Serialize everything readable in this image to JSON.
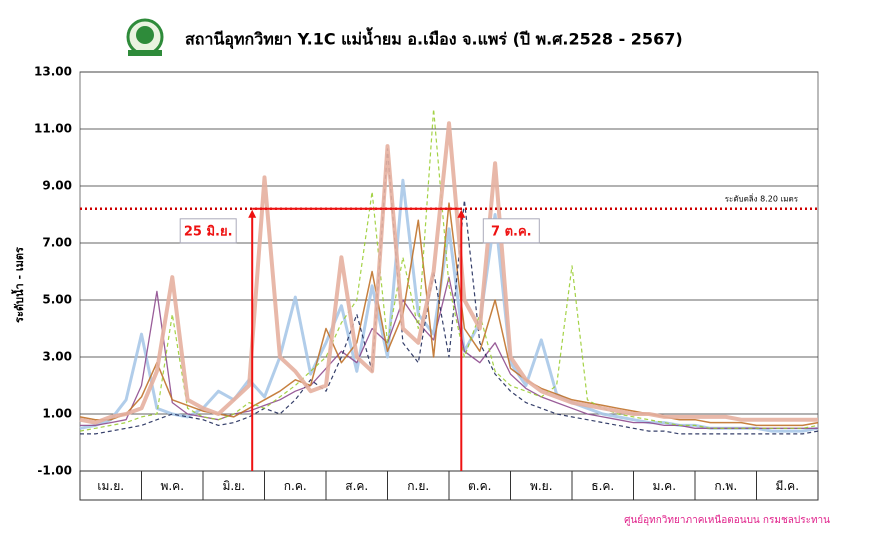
{
  "chart_data": {
    "type": "line",
    "title": "สถานีอุทกวิทยา Y.1C แม่น้ำยม อ.เมือง จ.แพร่ (ปี พ.ศ.2528 - 2567)",
    "y_label": "ระดับน้ำ - เมตร",
    "footer": "ศูนย์อุทกวิทยาภาคเหนือตอนบน กรมชลประทาน",
    "categories": [
      "เม.ย.",
      "พ.ค.",
      "มิ.ย.",
      "ก.ค.",
      "ส.ค.",
      "ก.ย.",
      "ต.ค.",
      "พ.ย.",
      "ธ.ค.",
      "ม.ค.",
      "ก.พ.",
      "มี.ค."
    ],
    "xlim": [
      0,
      12
    ],
    "ylim": [
      -1,
      13
    ],
    "yticks": [
      {
        "value": -1,
        "label": "-1.00"
      },
      {
        "value": 1,
        "label": "1.00"
      },
      {
        "value": 3,
        "label": "3.00"
      },
      {
        "value": 5,
        "label": "5.00"
      },
      {
        "value": 7,
        "label": "7.00"
      },
      {
        "value": 9,
        "label": "9.00"
      },
      {
        "value": 11,
        "label": "11.00"
      },
      {
        "value": 13,
        "label": "13.00"
      }
    ],
    "grid": true,
    "ref_line": {
      "value": 8.2,
      "label": "ระดับตลิ่ง 8.20 เมตร",
      "color": "#cc0000"
    },
    "annotations": [
      {
        "label": "25 มิ.ย.",
        "x": 2.8
      },
      {
        "label": "7 ต.ค.",
        "x": 6.2
      }
    ],
    "annotation_color": "#ee1111",
    "x": [
      0,
      0.25,
      0.5,
      0.75,
      1,
      1.25,
      1.5,
      1.75,
      2,
      2.25,
      2.5,
      2.75,
      3,
      3.25,
      3.5,
      3.75,
      4,
      4.25,
      4.5,
      4.75,
      5,
      5.25,
      5.5,
      5.75,
      6,
      6.25,
      6.5,
      6.75,
      7,
      7.25,
      7.5,
      7.75,
      8,
      8.25,
      8.5,
      8.75,
      9,
      9.25,
      9.5,
      9.75,
      10,
      10.25,
      10.5,
      10.75,
      11,
      11.25,
      11.5,
      11.75,
      12
    ],
    "series": [
      {
        "color": "#a8c8e8",
        "width": 3,
        "dash": false,
        "values": [
          0.5,
          0.6,
          0.8,
          1.5,
          3.8,
          1.2,
          1.0,
          0.9,
          1.2,
          1.8,
          1.5,
          2.2,
          1.6,
          3.0,
          5.1,
          2.4,
          3.5,
          4.8,
          2.5,
          5.5,
          3.0,
          9.2,
          4.5,
          3.8,
          7.5,
          3.2,
          4.2,
          8.0,
          2.8,
          2.0,
          3.6,
          1.7,
          1.4,
          1.2,
          1.0,
          0.9,
          0.8,
          0.7,
          0.7,
          0.6,
          0.6,
          0.5,
          0.5,
          0.5,
          0.5,
          0.4,
          0.4,
          0.4,
          0.5
        ]
      },
      {
        "color": "#8e4b8e",
        "width": 1.3,
        "dash": false,
        "values": [
          0.6,
          0.6,
          0.7,
          0.8,
          2.0,
          5.3,
          1.4,
          1.0,
          0.9,
          0.8,
          1.0,
          1.1,
          1.3,
          1.5,
          1.8,
          2.0,
          2.6,
          3.2,
          2.8,
          4.0,
          3.5,
          5.0,
          4.2,
          3.6,
          5.8,
          3.2,
          2.8,
          3.5,
          2.4,
          1.9,
          1.6,
          1.4,
          1.2,
          1.0,
          0.9,
          0.8,
          0.7,
          0.7,
          0.6,
          0.6,
          0.5,
          0.5,
          0.5,
          0.5,
          0.5,
          0.5,
          0.5,
          0.5,
          0.5
        ]
      },
      {
        "color": "#c0722a",
        "width": 1.5,
        "dash": false,
        "values": [
          0.9,
          0.8,
          0.8,
          1.0,
          1.6,
          2.8,
          1.5,
          1.3,
          1.1,
          1.0,
          0.9,
          1.2,
          1.5,
          1.8,
          2.2,
          2.0,
          4.0,
          2.8,
          3.5,
          6.0,
          3.2,
          4.5,
          7.8,
          3.0,
          8.4,
          4.0,
          3.2,
          5.0,
          2.6,
          2.2,
          1.9,
          1.7,
          1.5,
          1.4,
          1.3,
          1.2,
          1.1,
          1.0,
          0.9,
          0.8,
          0.8,
          0.7,
          0.7,
          0.7,
          0.6,
          0.6,
          0.6,
          0.6,
          0.7
        ]
      },
      {
        "color": "#1f2a5a",
        "width": 1.2,
        "dash": true,
        "values": [
          0.3,
          0.3,
          0.4,
          0.5,
          0.6,
          0.8,
          1.0,
          0.9,
          0.8,
          0.6,
          0.7,
          0.9,
          1.2,
          1.0,
          1.5,
          2.2,
          1.8,
          3.0,
          4.5,
          2.5,
          10.3,
          3.5,
          2.8,
          6.0,
          3.0,
          8.5,
          3.5,
          2.4,
          1.8,
          1.4,
          1.2,
          1.0,
          0.9,
          0.8,
          0.7,
          0.6,
          0.5,
          0.4,
          0.4,
          0.3,
          0.3,
          0.3,
          0.3,
          0.3,
          0.3,
          0.3,
          0.3,
          0.3,
          0.4
        ]
      },
      {
        "color": "#9acd32",
        "width": 1.2,
        "dash": true,
        "values": [
          0.4,
          0.5,
          0.6,
          0.7,
          0.9,
          1.0,
          4.5,
          1.2,
          0.9,
          0.8,
          1.0,
          1.4,
          1.2,
          1.6,
          2.0,
          2.5,
          3.0,
          4.2,
          5.0,
          8.8,
          3.5,
          6.5,
          4.0,
          11.7,
          5.5,
          3.0,
          4.5,
          2.5,
          2.0,
          1.8,
          1.6,
          2.0,
          6.2,
          1.5,
          1.2,
          1.0,
          0.9,
          0.8,
          0.7,
          0.6,
          0.6,
          0.5,
          0.5,
          0.5,
          0.5,
          0.5,
          0.5,
          0.5,
          0.6
        ]
      },
      {
        "color": "#e6b0a0",
        "width": 4,
        "dash": false,
        "values": [
          0.8,
          0.7,
          0.9,
          1.0,
          1.2,
          2.5,
          5.8,
          1.5,
          1.2,
          1.0,
          1.5,
          2.0,
          9.3,
          3.0,
          2.5,
          1.8,
          2.0,
          6.5,
          3.0,
          2.5,
          10.4,
          4.0,
          3.5,
          6.0,
          11.2,
          5.0,
          4.0,
          9.8,
          3.0,
          2.2,
          1.8,
          1.6,
          1.4,
          1.3,
          1.2,
          1.1,
          1.0,
          1.0,
          0.9,
          0.9,
          0.9,
          0.9,
          0.9,
          0.8,
          0.8,
          0.8,
          0.8,
          0.8,
          0.8
        ]
      }
    ]
  }
}
